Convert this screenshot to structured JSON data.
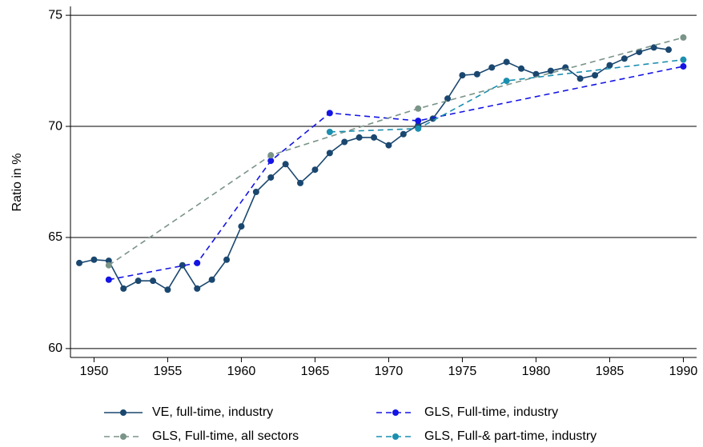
{
  "chart_data": {
    "type": "line",
    "y_label": "Ratio in %",
    "xlim": [
      1948.4,
      1990.9
    ],
    "ylim": [
      59.6,
      75.4
    ],
    "xticks": [
      1950,
      1955,
      1960,
      1965,
      1970,
      1975,
      1980,
      1985,
      1990
    ],
    "yticks": [
      60,
      65,
      70,
      75
    ],
    "grid": true,
    "series": [
      {
        "name": "VE, full-time, industry",
        "color": "#1a476f",
        "line_style": "solid",
        "x": [
          1949,
          1950,
          1951,
          1952,
          1953,
          1954,
          1955,
          1956,
          1957,
          1958,
          1959,
          1960,
          1961,
          1962,
          1963,
          1964,
          1965,
          1966,
          1967,
          1968,
          1969,
          1970,
          1971,
          1972,
          1973,
          1974,
          1975,
          1976,
          1977,
          1978,
          1979,
          1980,
          1981,
          1982,
          1983,
          1984,
          1985,
          1986,
          1987,
          1988,
          1989
        ],
        "values": [
          63.85,
          64.0,
          63.95,
          62.7,
          63.05,
          63.05,
          62.65,
          63.75,
          62.7,
          63.1,
          64.0,
          65.5,
          67.05,
          67.7,
          68.3,
          67.45,
          68.05,
          68.8,
          69.3,
          69.5,
          69.5,
          69.15,
          69.65,
          70.05,
          70.35,
          71.25,
          72.3,
          72.35,
          72.65,
          72.9,
          72.6,
          72.35,
          72.5,
          72.65,
          72.15,
          72.3,
          72.75,
          73.05,
          73.35,
          73.55,
          73.45
        ]
      },
      {
        "name": "GLS, Full-time, industry",
        "color": "#1414e6",
        "line_style": "dashed",
        "x": [
          1951,
          1957,
          1962,
          1966,
          1972,
          1990
        ],
        "values": [
          63.1,
          63.85,
          68.45,
          70.6,
          70.25,
          72.7
        ]
      },
      {
        "name": "GLS, Full-time, all sectors",
        "color": "#7a9488",
        "line_style": "dashed",
        "x": [
          1951,
          1962,
          1972,
          1990
        ],
        "values": [
          63.75,
          68.7,
          70.8,
          74.0
        ]
      },
      {
        "name": "GLS, Full-& part-time, industry",
        "color": "#1a8fb0",
        "line_style": "dashed",
        "x": [
          1966,
          1972,
          1978,
          1990
        ],
        "values": [
          69.75,
          69.9,
          72.05,
          73.0
        ]
      }
    ]
  }
}
